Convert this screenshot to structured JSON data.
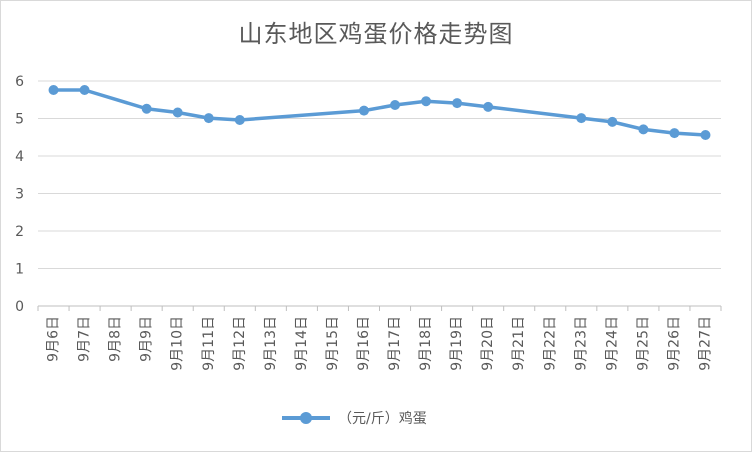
{
  "chart_data": {
    "type": "line",
    "title": "山东地区鸡蛋价格走势图",
    "xlabel": "",
    "ylabel": "",
    "ylim": [
      0,
      6
    ],
    "yticks": [
      "0",
      "1",
      "2",
      "3",
      "4",
      "5",
      "6"
    ],
    "grid": true,
    "legend_position": "bottom",
    "categories": [
      "9月6日",
      "9月7日",
      "9月8日",
      "9月9日",
      "9月10日",
      "9月11日",
      "9月12日",
      "9月13日",
      "9月14日",
      "9月15日",
      "9月16日",
      "9月17日",
      "9月18日",
      "9月19日",
      "9月20日",
      "9月21日",
      "9月22日",
      "9月23日",
      "9月24日",
      "9月25日",
      "9月26日",
      "9月27日"
    ],
    "series": [
      {
        "name": "（元/斤）鸡蛋",
        "color": "#5b9bd5",
        "values": [
          5.76,
          5.76,
          null,
          5.26,
          5.16,
          5.01,
          4.96,
          null,
          null,
          null,
          5.21,
          5.36,
          5.46,
          5.41,
          5.31,
          null,
          null,
          5.01,
          4.91,
          4.71,
          4.61,
          4.56
        ]
      }
    ]
  }
}
